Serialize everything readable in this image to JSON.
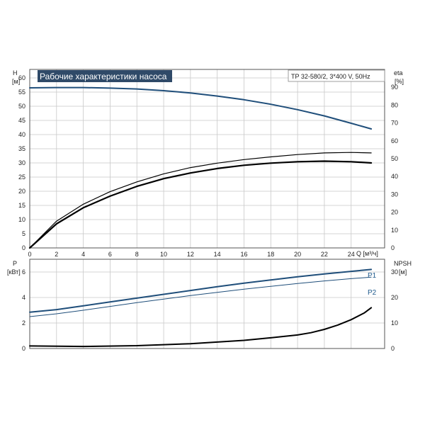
{
  "chart_data": [
    {
      "type": "line",
      "title": "Рабочие характеристики насоса",
      "model": "TP 32-580/2, 3*400 V, 50Hz",
      "left_axis": {
        "label_line1": "H",
        "label_line2": "[м]",
        "ticks": [
          0,
          5,
          10,
          15,
          20,
          25,
          30,
          35,
          40,
          45,
          50,
          55,
          60
        ],
        "range": [
          0,
          63
        ]
      },
      "right_axis": {
        "label_line1": "eta",
        "label_line2": "[%]",
        "ticks": [
          0,
          10,
          20,
          30,
          40,
          50,
          60,
          70,
          80,
          90
        ],
        "range": [
          0,
          100
        ]
      },
      "x_axis": {
        "label": "Q [м³/ч]",
        "ticks": [
          0,
          2,
          4,
          6,
          8,
          10,
          12,
          14,
          16,
          18,
          20,
          22,
          24
        ],
        "range": [
          0,
          26.5
        ]
      },
      "grid": true,
      "series": [
        {
          "color": "#1f4e7a",
          "width": 2,
          "axis": "left",
          "x": [
            0,
            2,
            4,
            6,
            8,
            10,
            12,
            14,
            16,
            18,
            20,
            22,
            24,
            25.5
          ],
          "y": [
            56.5,
            56.6,
            56.6,
            56.4,
            56.1,
            55.5,
            54.7,
            53.6,
            52.3,
            50.7,
            48.8,
            46.6,
            44.0,
            42.0
          ]
        },
        {
          "color": "#000000",
          "width": 1.2,
          "axis": "right",
          "x": [
            0,
            2,
            4,
            6,
            8,
            10,
            12,
            14,
            16,
            18,
            20,
            22,
            24,
            25.5
          ],
          "y": [
            0,
            15,
            24.5,
            31.5,
            37,
            41.5,
            45,
            47.5,
            49.5,
            51,
            52.3,
            53.2,
            53.5,
            53.2
          ]
        },
        {
          "color": "#000000",
          "width": 2.2,
          "axis": "right",
          "x": [
            0,
            2,
            4,
            6,
            8,
            10,
            12,
            14,
            16,
            18,
            20,
            22,
            24,
            25.5
          ],
          "y": [
            0,
            13.5,
            22.5,
            29,
            34.5,
            38.8,
            42,
            44.5,
            46.3,
            47.5,
            48.3,
            48.6,
            48.3,
            47.6
          ]
        }
      ]
    },
    {
      "type": "line",
      "left_axis": {
        "label_line1": "P",
        "label_line2": "[кВт]",
        "ticks": [
          0,
          2,
          4,
          6
        ],
        "range": [
          0,
          7
        ]
      },
      "right_axis": {
        "label_line1": "NPSH",
        "label_line2": "[м]",
        "ticks": [
          0,
          10,
          20,
          30
        ],
        "range": [
          0,
          35
        ]
      },
      "x_range": [
        0,
        26.5
      ],
      "x_ticks": [
        0,
        2,
        4,
        6,
        8,
        10,
        12,
        14,
        16,
        18,
        20,
        22,
        24
      ],
      "grid": true,
      "series": [
        {
          "name": "P1",
          "color": "#1f4e7a",
          "width": 2,
          "axis": "left",
          "x": [
            0,
            2,
            4,
            6,
            8,
            10,
            12,
            14,
            16,
            18,
            20,
            22,
            24,
            25.5
          ],
          "y": [
            2.85,
            3.05,
            3.35,
            3.65,
            3.95,
            4.25,
            4.55,
            4.85,
            5.12,
            5.38,
            5.62,
            5.85,
            6.05,
            6.2
          ]
        },
        {
          "name": "P2",
          "color": "#1f4e7a",
          "width": 1,
          "axis": "left",
          "x": [
            0,
            2,
            4,
            6,
            8,
            10,
            12,
            14,
            16,
            18,
            20,
            22,
            24,
            25.5
          ],
          "y": [
            2.5,
            2.72,
            3.0,
            3.3,
            3.6,
            3.88,
            4.15,
            4.4,
            4.65,
            4.88,
            5.1,
            5.3,
            5.48,
            5.6
          ]
        },
        {
          "color": "#000000",
          "width": 2,
          "axis": "right",
          "x": [
            0,
            4,
            8,
            12,
            16,
            18,
            20,
            21,
            22,
            23,
            24,
            25,
            25.5
          ],
          "y": [
            1.0,
            0.8,
            1.1,
            1.9,
            3.2,
            4.2,
            5.3,
            6.2,
            7.5,
            9.2,
            11.3,
            14.0,
            16.0
          ]
        }
      ]
    }
  ]
}
